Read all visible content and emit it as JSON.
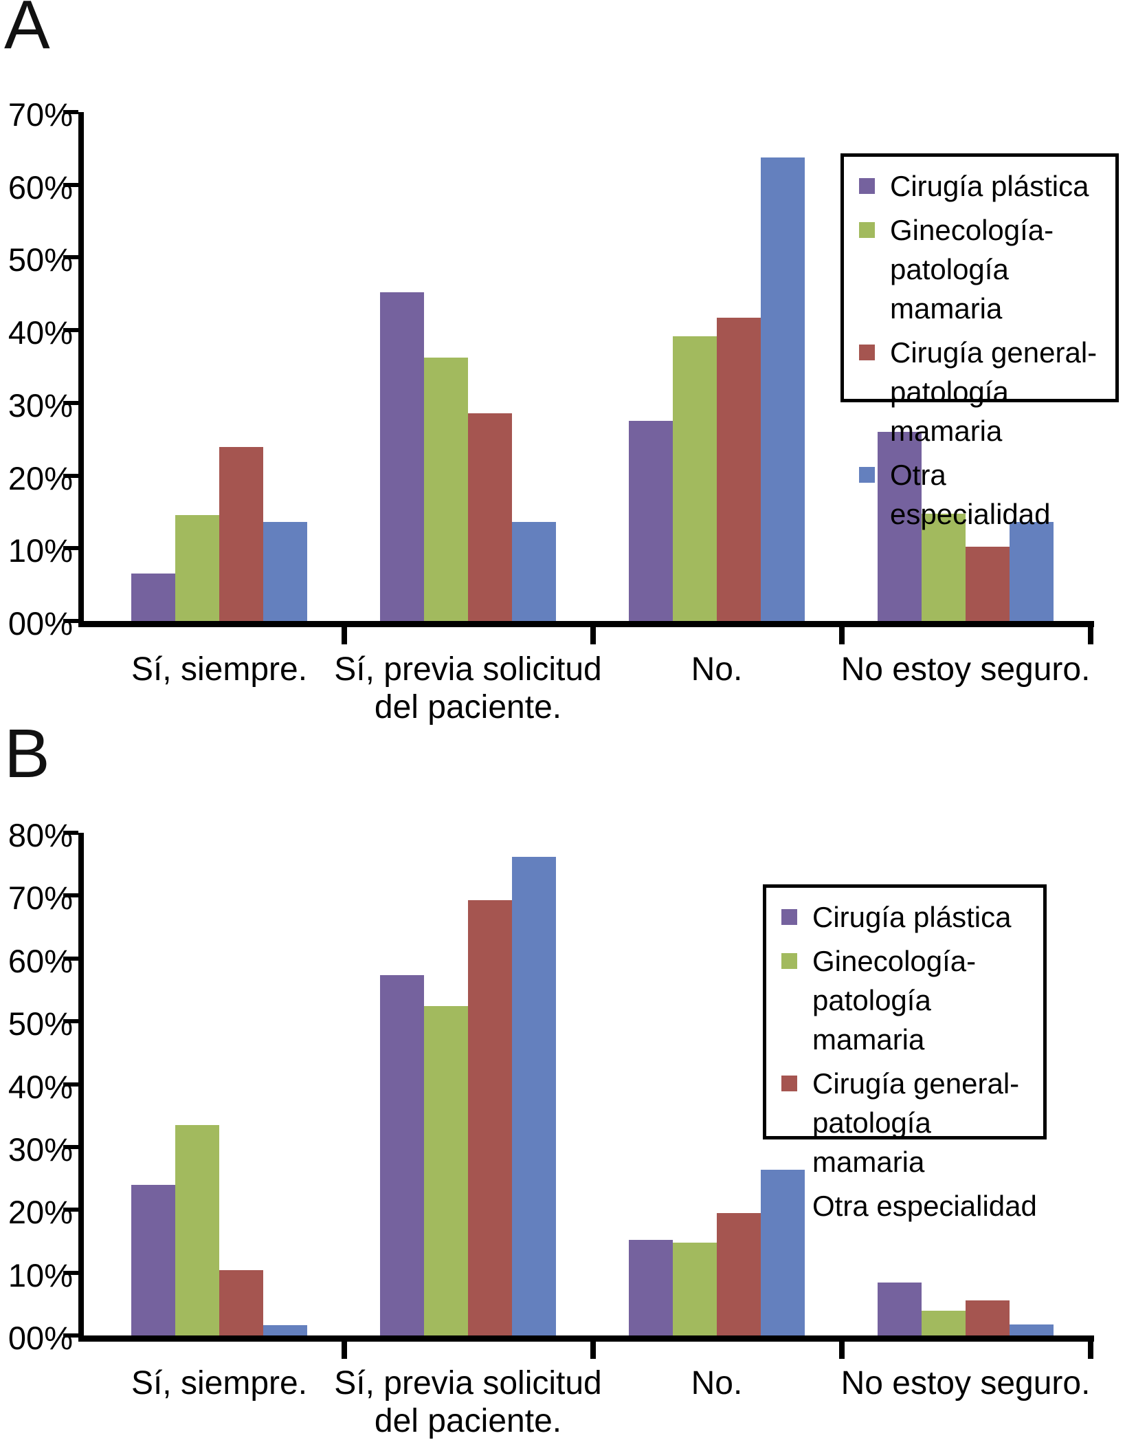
{
  "figure": {
    "type": "two-panel grouped bar chart",
    "background": "#FFFFFF",
    "panel_count": 2
  },
  "colors": {
    "purple": "#75629E",
    "green": "#A2BA5E",
    "red": "#A55550",
    "blue": "#6480BE",
    "axis": "#000000"
  },
  "chart_data": [
    {
      "type": "bar",
      "panel_label": "A",
      "title": "",
      "xlabel": "",
      "ylabel": "",
      "ylim": [
        0,
        70
      ],
      "grid": false,
      "legend_position": "upper-right-inside",
      "y_tick_labels": [
        "70%",
        "60%",
        "50%",
        "40%",
        "30%",
        "20%",
        "10%",
        "00%"
      ],
      "categories": [
        "Sí, siempre.",
        "Sí, previa solicitud del paciente.",
        "No.",
        "No estoy seguro."
      ],
      "category_lines": [
        [
          "Sí, siempre."
        ],
        [
          "Sí, previa solicitud",
          "del paciente."
        ],
        [
          "No."
        ],
        [
          "No estoy seguro."
        ]
      ],
      "series": [
        {
          "name": "Cirugía plástica",
          "color_key": "purple",
          "legend_lines": [
            "Cirugía plástica"
          ],
          "values": [
            6.5,
            45.2,
            27.5,
            26.0
          ]
        },
        {
          "name": "Ginecología-patología mamaria",
          "color_key": "green",
          "legend_lines": [
            "Ginecología-",
            "patología mamaria"
          ],
          "values": [
            14.6,
            36.2,
            39.2,
            14.8
          ]
        },
        {
          "name": "Cirugía general-patología mamaria",
          "color_key": "red",
          "legend_lines": [
            "Cirugía general-",
            "patología mamaria"
          ],
          "values": [
            23.9,
            28.6,
            41.7,
            10.2
          ]
        },
        {
          "name": "Otra especialidad",
          "color_key": "blue",
          "legend_lines": [
            "Otra especialidad"
          ],
          "values": [
            13.6,
            13.6,
            63.8,
            13.6
          ]
        }
      ]
    },
    {
      "type": "bar",
      "panel_label": "B",
      "title": "",
      "xlabel": "",
      "ylabel": "",
      "ylim": [
        0,
        80
      ],
      "grid": false,
      "legend_position": "upper-right-inside",
      "y_tick_labels": [
        "80%",
        "70%",
        "60%",
        "50%",
        "40%",
        "30%",
        "20%",
        "10%",
        "00%"
      ],
      "categories": [
        "Sí, siempre.",
        "Sí, previa solicitud del paciente.",
        "No.",
        "No estoy seguro."
      ],
      "category_lines": [
        [
          "Sí, siempre."
        ],
        [
          "Sí, previa solicitud",
          "del paciente."
        ],
        [
          "No."
        ],
        [
          "No estoy seguro."
        ]
      ],
      "series": [
        {
          "name": "Cirugía plástica",
          "color_key": "purple",
          "legend_lines": [
            "Cirugía plástica"
          ],
          "values": [
            24.0,
            57.4,
            15.2,
            8.4
          ]
        },
        {
          "name": "Ginecología-patología mamaria",
          "color_key": "green",
          "legend_lines": [
            "Ginecología-",
            "patología mamaria"
          ],
          "values": [
            33.5,
            52.4,
            14.8,
            3.9
          ]
        },
        {
          "name": "Cirugía general-patología mamaria",
          "color_key": "red",
          "legend_lines": [
            "Cirugía general-",
            "patología mamaria"
          ],
          "values": [
            10.4,
            69.3,
            19.5,
            5.6
          ]
        },
        {
          "name": "Otra especialidad",
          "color_key": "blue",
          "legend_lines": [
            "Otra especialidad"
          ],
          "values": [
            1.6,
            76.2,
            26.4,
            1.8
          ]
        }
      ]
    }
  ]
}
